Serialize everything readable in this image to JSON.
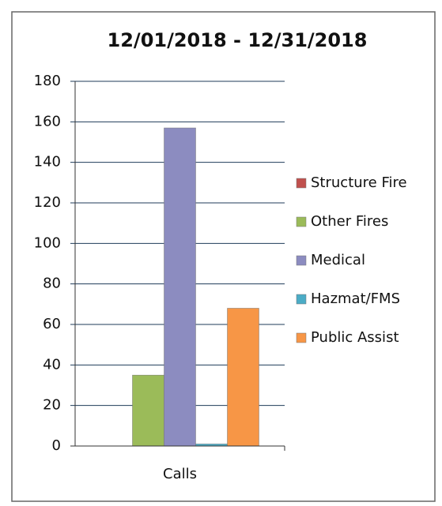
{
  "chart_data": {
    "type": "bar",
    "title": "12/01/2018 - 12/31/2018",
    "categories": [
      "Calls"
    ],
    "series": [
      {
        "name": "Structure Fire",
        "color": "#c0504d",
        "values": [
          0
        ]
      },
      {
        "name": "Other Fires",
        "color": "#9bbb59",
        "values": [
          35
        ]
      },
      {
        "name": "Medical",
        "color": "#8c8cc0",
        "values": [
          157
        ]
      },
      {
        "name": "Hazmat/FMS",
        "color": "#4bacc6",
        "values": [
          1
        ]
      },
      {
        "name": "Public Assist",
        "color": "#f79646",
        "values": [
          68
        ]
      }
    ],
    "ylim": [
      0,
      180
    ],
    "yticks": [
      0,
      20,
      40,
      60,
      80,
      100,
      120,
      140,
      160,
      180
    ],
    "grid": true,
    "legend": "right"
  }
}
